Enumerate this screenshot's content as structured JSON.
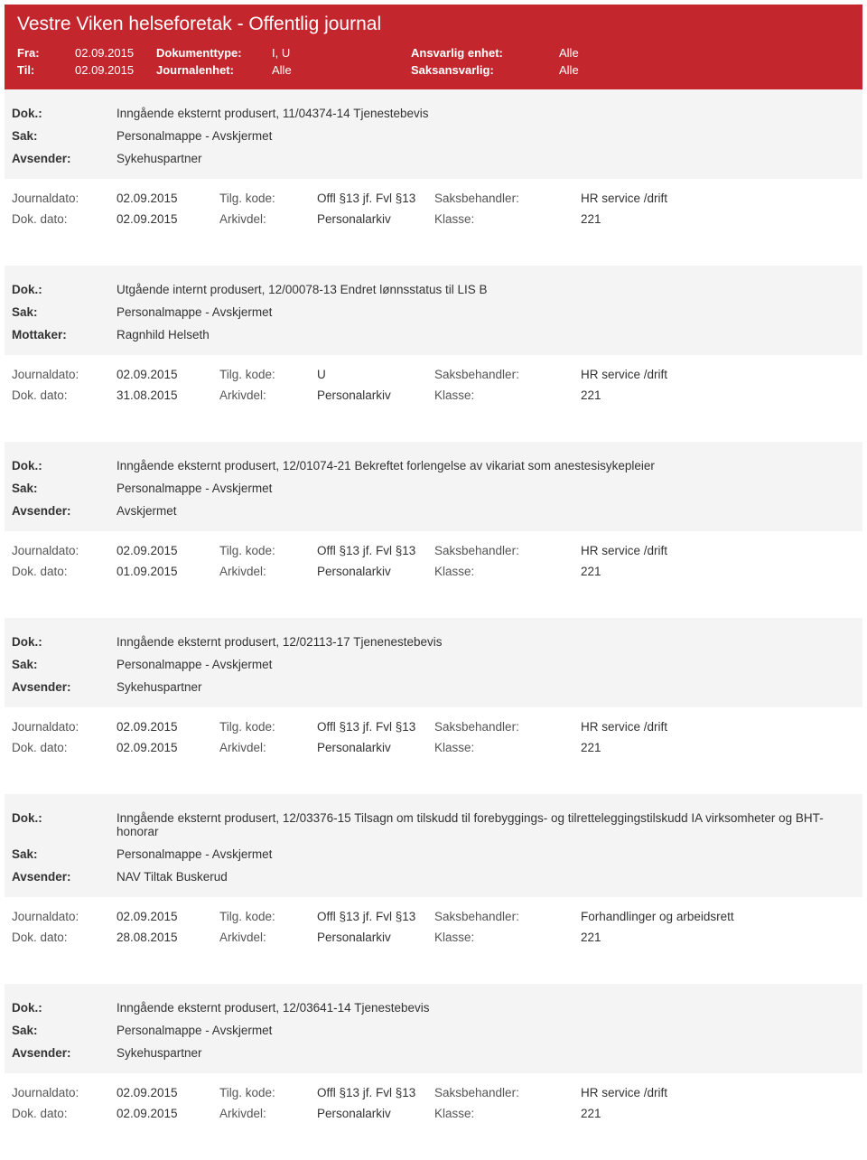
{
  "header": {
    "title": "Vestre Viken helseforetak - Offentlig journal",
    "fra_label": "Fra:",
    "fra_value": "02.09.2015",
    "til_label": "Til:",
    "til_value": "02.09.2015",
    "doktype_label": "Dokumenttype:",
    "doktype_value": "I, U",
    "journalenhet_label": "Journalenhet:",
    "journalenhet_value": "Alle",
    "ansvarlig_label": "Ansvarlig enhet:",
    "ansvarlig_value": "Alle",
    "saksansvarlig_label": "Saksansvarlig:",
    "saksansvarlig_value": "Alle"
  },
  "labels": {
    "dok": "Dok.:",
    "sak": "Sak:",
    "avsender": "Avsender:",
    "mottaker": "Mottaker:",
    "journaldato": "Journaldato:",
    "dokdato": "Dok. dato:",
    "tilgkode": "Tilg. kode:",
    "arkivdel": "Arkivdel:",
    "saksbehandler": "Saksbehandler:",
    "klasse": "Klasse:"
  },
  "entries": [
    {
      "dok": "Inngående eksternt produsert, 11/04374-14 Tjenestebevis",
      "sak": "Personalmappe - Avskjermet",
      "party_label": "Avsender:",
      "party": "Sykehuspartner",
      "journaldato": "02.09.2015",
      "tilgkode": "Offl §13 jf. Fvl §13",
      "saksbehandler": "HR service /drift",
      "dokdato": "02.09.2015",
      "arkivdel": "Personalarkiv",
      "klasse": "221"
    },
    {
      "dok": "Utgående internt produsert, 12/00078-13 Endret lønnsstatus til LIS B",
      "sak": "Personalmappe - Avskjermet",
      "party_label": "Mottaker:",
      "party": "Ragnhild Helseth",
      "journaldato": "02.09.2015",
      "tilgkode": "U",
      "saksbehandler": "HR service /drift",
      "dokdato": "31.08.2015",
      "arkivdel": "Personalarkiv",
      "klasse": "221"
    },
    {
      "dok": "Inngående eksternt produsert, 12/01074-21 Bekreftet forlengelse av vikariat som anestesisykepleier",
      "sak": "Personalmappe - Avskjermet",
      "party_label": "Avsender:",
      "party": "Avskjermet",
      "journaldato": "02.09.2015",
      "tilgkode": "Offl §13 jf. Fvl §13",
      "saksbehandler": "HR service /drift",
      "dokdato": "01.09.2015",
      "arkivdel": "Personalarkiv",
      "klasse": "221"
    },
    {
      "dok": "Inngående eksternt produsert, 12/02113-17 Tjenenestebevis",
      "sak": "Personalmappe - Avskjermet",
      "party_label": "Avsender:",
      "party": "Sykehuspartner",
      "journaldato": "02.09.2015",
      "tilgkode": "Offl §13 jf. Fvl §13",
      "saksbehandler": "HR service /drift",
      "dokdato": "02.09.2015",
      "arkivdel": "Personalarkiv",
      "klasse": "221"
    },
    {
      "dok": "Inngående eksternt produsert, 12/03376-15 Tilsagn om tilskudd til forebyggings- og tilretteleggingstilskudd IA virksomheter og BHT-honorar",
      "sak": "Personalmappe - Avskjermet",
      "party_label": "Avsender:",
      "party": "NAV Tiltak Buskerud",
      "journaldato": "02.09.2015",
      "tilgkode": "Offl §13 jf. Fvl §13",
      "saksbehandler": "Forhandlinger og arbeidsrett",
      "dokdato": "28.08.2015",
      "arkivdel": "Personalarkiv",
      "klasse": "221"
    },
    {
      "dok": "Inngående eksternt produsert, 12/03641-14 Tjenestebevis",
      "sak": "Personalmappe - Avskjermet",
      "party_label": "Avsender:",
      "party": "Sykehuspartner",
      "journaldato": "02.09.2015",
      "tilgkode": "Offl §13 jf. Fvl §13",
      "saksbehandler": "HR service /drift",
      "dokdato": "02.09.2015",
      "arkivdel": "Personalarkiv",
      "klasse": "221"
    }
  ]
}
